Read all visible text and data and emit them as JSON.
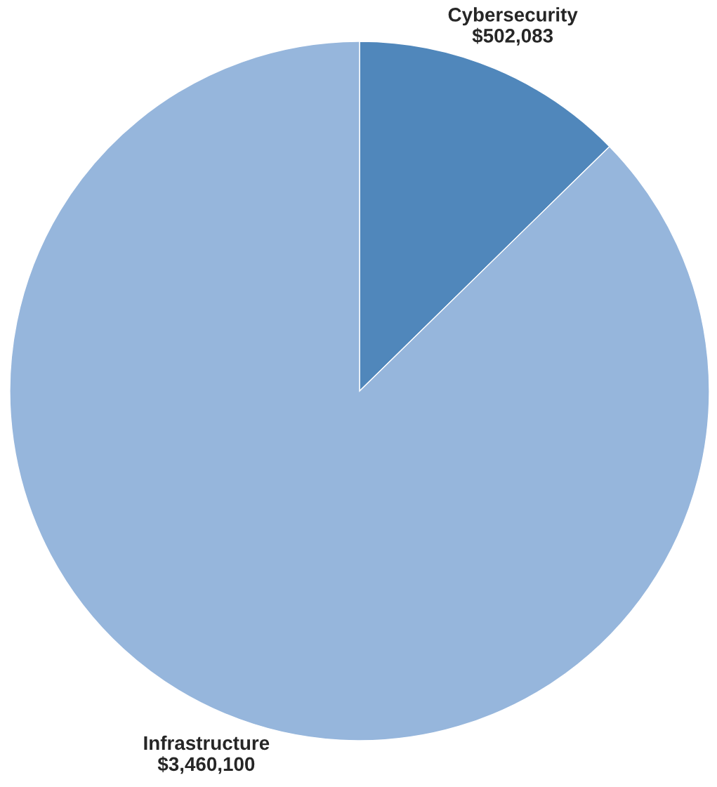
{
  "chart_data": {
    "type": "pie",
    "categories": [
      "Cybersecurity",
      "Infrastructure"
    ],
    "values": [
      502083,
      3460100
    ],
    "value_labels": [
      "$502,083",
      "$3,460,100"
    ],
    "colors": [
      "#5087bb",
      "#96b6dc"
    ]
  }
}
